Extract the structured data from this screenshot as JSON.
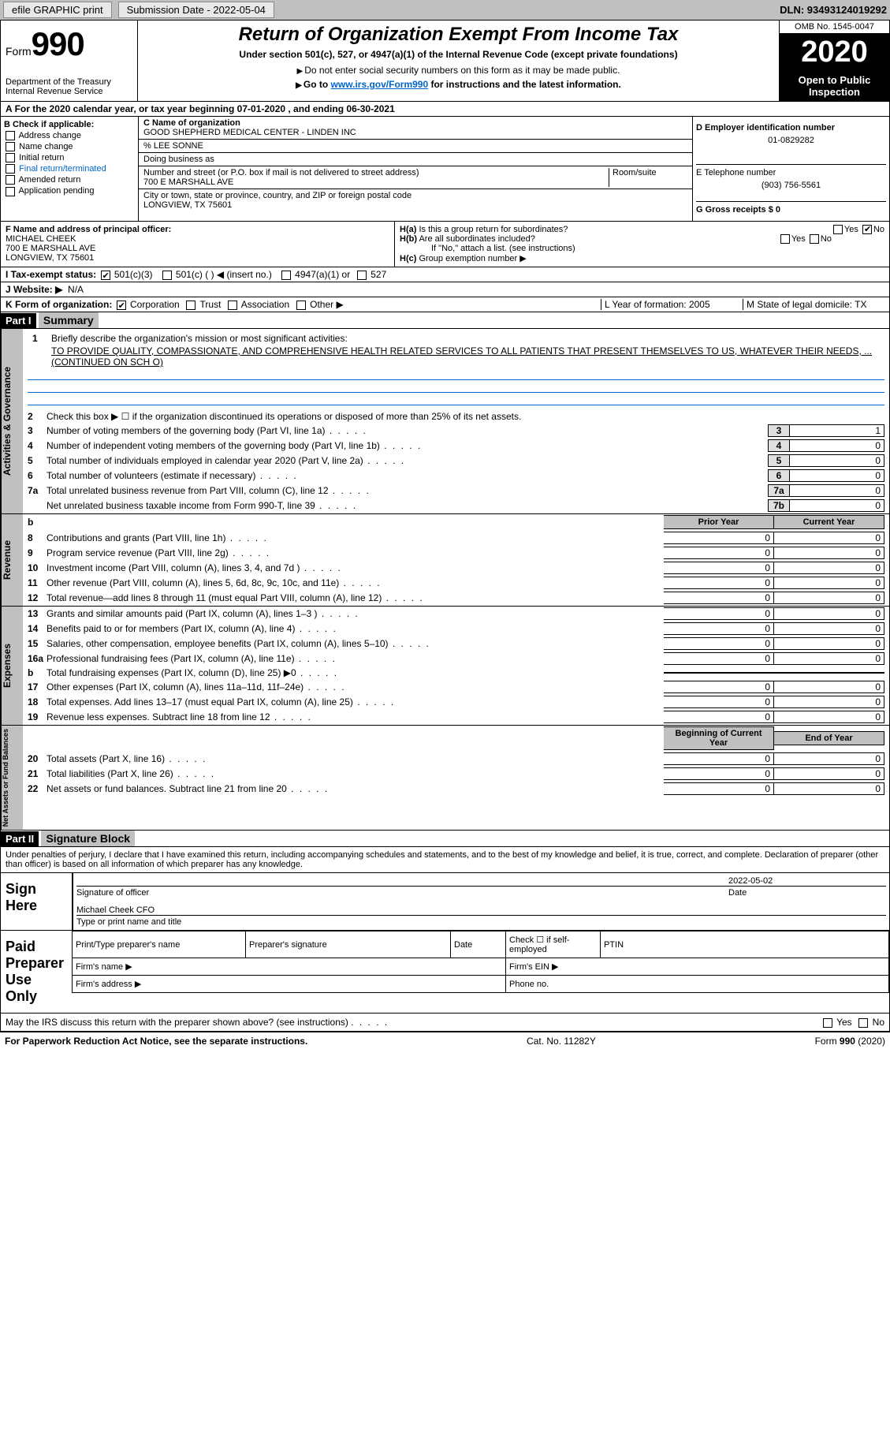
{
  "topbar": {
    "efile": "efile GRAPHIC print",
    "submission_label": "Submission Date - 2022-05-04",
    "dln": "DLN: 93493124019292"
  },
  "header": {
    "form_word": "Form",
    "form_num": "990",
    "dept": "Department of the Treasury\nInternal Revenue Service",
    "title": "Return of Organization Exempt From Income Tax",
    "subtitle": "Under section 501(c), 527, or 4947(a)(1) of the Internal Revenue Code (except private foundations)",
    "sub2": "Do not enter social security numbers on this form as it may be made public.",
    "sub3_pre": "Go to ",
    "sub3_link": "www.irs.gov/Form990",
    "sub3_post": " for instructions and the latest information.",
    "omb": "OMB No. 1545-0047",
    "year": "2020",
    "inspect": "Open to Public Inspection"
  },
  "period": "For the 2020 calendar year, or tax year beginning 07-01-2020   , and ending 06-30-2021",
  "box_b": {
    "title": "B Check if applicable:",
    "items": [
      "Address change",
      "Name change",
      "Initial return",
      "Final return/terminated",
      "Amended return",
      "Application pending"
    ]
  },
  "box_c": {
    "label_name": "C Name of organization",
    "name": "GOOD SHEPHERD MEDICAL CENTER - LINDEN INC",
    "care_of": "% LEE SONNE",
    "dba_label": "Doing business as",
    "street_label": "Number and street (or P.O. box if mail is not delivered to street address)",
    "street": "700 E MARSHALL AVE",
    "room_label": "Room/suite",
    "city_label": "City or town, state or province, country, and ZIP or foreign postal code",
    "city": "LONGVIEW, TX  75601"
  },
  "box_d": {
    "label": "D Employer identification number",
    "value": "01-0829282"
  },
  "box_e": {
    "label": "E Telephone number",
    "value": "(903) 756-5561"
  },
  "box_g": {
    "label": "G Gross receipts $ 0"
  },
  "box_f": {
    "label": "F  Name and address of principal officer:",
    "name": "MICHAEL CHEEK",
    "addr1": "700 E MARSHALL AVE",
    "addr2": "LONGVIEW, TX  75601"
  },
  "box_h": {
    "a": "Is this a group return for subordinates?",
    "a_yes": "Yes",
    "a_no": "No",
    "b": "Are all subordinates included?",
    "b_note": "If \"No,\" attach a list. (see instructions)",
    "c": "Group exemption number ▶"
  },
  "row_i": {
    "label": "I   Tax-exempt status:",
    "opt1": "501(c)(3)",
    "opt2": "501(c) (  ) ◀ (insert no.)",
    "opt3": "4947(a)(1) or",
    "opt4": "527"
  },
  "row_j": {
    "label": "J   Website: ▶",
    "value": "N/A"
  },
  "row_k": {
    "label": "K Form of organization:",
    "opt1": "Corporation",
    "opt2": "Trust",
    "opt3": "Association",
    "opt4": "Other ▶",
    "l": "L Year of formation: 2005",
    "m": "M State of legal domicile: TX"
  },
  "part1": {
    "hdr": "Part I",
    "title": "Summary",
    "q1": "Briefly describe the organization's mission or most significant activities:",
    "mission": "TO PROVIDE QUALITY, COMPASSIONATE, AND COMPREHENSIVE HEALTH RELATED SERVICES TO ALL PATIENTS THAT PRESENT THEMSELVES TO US, WHATEVER THEIR NEEDS, ... (CONTINUED ON SCH O)",
    "q2": "Check this box ▶ ☐  if the organization discontinued its operations or disposed of more than 25% of its net assets.",
    "lines_gov": [
      {
        "n": "3",
        "d": "Number of voting members of the governing body (Part VI, line 1a)",
        "box": "3",
        "v": "1"
      },
      {
        "n": "4",
        "d": "Number of independent voting members of the governing body (Part VI, line 1b)",
        "box": "4",
        "v": "0"
      },
      {
        "n": "5",
        "d": "Total number of individuals employed in calendar year 2020 (Part V, line 2a)",
        "box": "5",
        "v": "0"
      },
      {
        "n": "6",
        "d": "Total number of volunteers (estimate if necessary)",
        "box": "6",
        "v": "0"
      },
      {
        "n": "7a",
        "d": "Total unrelated business revenue from Part VIII, column (C), line 12",
        "box": "7a",
        "v": "0"
      },
      {
        "n": "",
        "d": "Net unrelated business taxable income from Form 990-T, line 39",
        "box": "7b",
        "v": "0"
      }
    ],
    "col_prior": "Prior Year",
    "col_current": "Current Year",
    "lines_rev": [
      {
        "n": "8",
        "d": "Contributions and grants (Part VIII, line 1h)",
        "p": "0",
        "c": "0"
      },
      {
        "n": "9",
        "d": "Program service revenue (Part VIII, line 2g)",
        "p": "0",
        "c": "0"
      },
      {
        "n": "10",
        "d": "Investment income (Part VIII, column (A), lines 3, 4, and 7d )",
        "p": "0",
        "c": "0"
      },
      {
        "n": "11",
        "d": "Other revenue (Part VIII, column (A), lines 5, 6d, 8c, 9c, 10c, and 11e)",
        "p": "0",
        "c": "0"
      },
      {
        "n": "12",
        "d": "Total revenue—add lines 8 through 11 (must equal Part VIII, column (A), line 12)",
        "p": "0",
        "c": "0"
      }
    ],
    "lines_exp": [
      {
        "n": "13",
        "d": "Grants and similar amounts paid (Part IX, column (A), lines 1–3 )",
        "p": "0",
        "c": "0"
      },
      {
        "n": "14",
        "d": "Benefits paid to or for members (Part IX, column (A), line 4)",
        "p": "0",
        "c": "0"
      },
      {
        "n": "15",
        "d": "Salaries, other compensation, employee benefits (Part IX, column (A), lines 5–10)",
        "p": "0",
        "c": "0"
      },
      {
        "n": "16a",
        "d": "Professional fundraising fees (Part IX, column (A), line 11e)",
        "p": "0",
        "c": "0"
      },
      {
        "n": "b",
        "d": "Total fundraising expenses (Part IX, column (D), line 25) ▶0",
        "p": "",
        "c": ""
      },
      {
        "n": "17",
        "d": "Other expenses (Part IX, column (A), lines 11a–11d, 11f–24e)",
        "p": "0",
        "c": "0"
      },
      {
        "n": "18",
        "d": "Total expenses. Add lines 13–17 (must equal Part IX, column (A), line 25)",
        "p": "0",
        "c": "0"
      },
      {
        "n": "19",
        "d": "Revenue less expenses. Subtract line 18 from line 12",
        "p": "0",
        "c": "0"
      }
    ],
    "col_begin": "Beginning of Current Year",
    "col_end": "End of Year",
    "lines_net": [
      {
        "n": "20",
        "d": "Total assets (Part X, line 16)",
        "p": "0",
        "c": "0"
      },
      {
        "n": "21",
        "d": "Total liabilities (Part X, line 26)",
        "p": "0",
        "c": "0"
      },
      {
        "n": "22",
        "d": "Net assets or fund balances. Subtract line 21 from line 20",
        "p": "0",
        "c": "0"
      }
    ],
    "vlabels": {
      "gov": "Activities & Governance",
      "rev": "Revenue",
      "exp": "Expenses",
      "net": "Net Assets or Fund Balances"
    }
  },
  "part2": {
    "hdr": "Part II",
    "title": "Signature Block",
    "penalty": "Under penalties of perjury, I declare that I have examined this return, including accompanying schedules and statements, and to the best of my knowledge and belief, it is true, correct, and complete. Declaration of preparer (other than officer) is based on all information of which preparer has any knowledge.",
    "sign_here": "Sign Here",
    "sig_officer": "Signature of officer",
    "date": "Date",
    "sig_date": "2022-05-02",
    "name_title": "Michael Cheek CFO",
    "type_name": "Type or print name and title",
    "paid": "Paid Preparer Use Only",
    "p1": "Print/Type preparer's name",
    "p2": "Preparer's signature",
    "p3": "Date",
    "p4": "Check ☐ if self-employed",
    "p5": "PTIN",
    "firm_name": "Firm's name  ▶",
    "firm_ein": "Firm's EIN ▶",
    "firm_addr": "Firm's address ▶",
    "phone": "Phone no.",
    "may_irs": "May the IRS discuss this return with the preparer shown above? (see instructions)",
    "yes": "Yes",
    "no": "No"
  },
  "footer": {
    "left": "For Paperwork Reduction Act Notice, see the separate instructions.",
    "mid": "Cat. No. 11282Y",
    "right": "Form 990 (2020)"
  }
}
